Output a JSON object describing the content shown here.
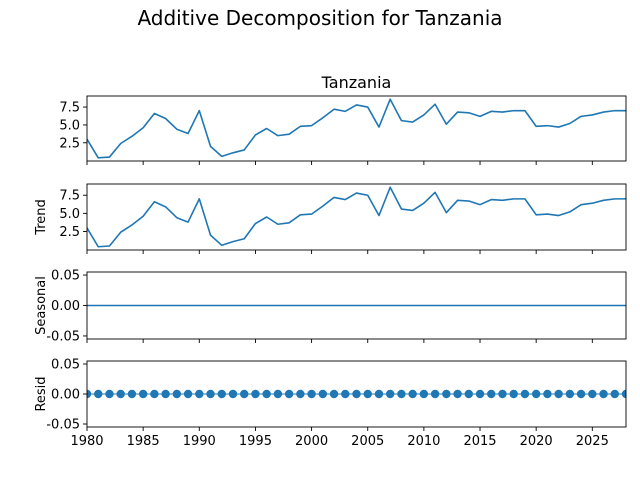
{
  "figure": {
    "suptitle": "Additive Decomposition for Tanzania"
  },
  "chart_data": [
    {
      "type": "line",
      "name": "observed",
      "title": "Tanzania",
      "ylabel": "",
      "x": [
        1980,
        1981,
        1982,
        1983,
        1984,
        1985,
        1986,
        1987,
        1988,
        1989,
        1990,
        1991,
        1992,
        1993,
        1994,
        1995,
        1996,
        1997,
        1998,
        1999,
        2000,
        2001,
        2002,
        2003,
        2004,
        2005,
        2006,
        2007,
        2008,
        2009,
        2010,
        2011,
        2012,
        2013,
        2014,
        2015,
        2016,
        2017,
        2018,
        2019,
        2020,
        2021,
        2022,
        2023,
        2024,
        2025,
        2026,
        2027,
        2028
      ],
      "values": [
        3.0,
        0.4,
        0.5,
        2.4,
        3.4,
        4.6,
        6.6,
        5.9,
        4.4,
        3.8,
        7.0,
        2.0,
        0.6,
        1.1,
        1.5,
        3.6,
        4.5,
        3.5,
        3.7,
        4.8,
        4.9,
        6.0,
        7.2,
        6.9,
        7.8,
        7.5,
        4.7,
        8.6,
        5.6,
        5.4,
        6.4,
        7.9,
        5.1,
        6.8,
        6.7,
        6.2,
        6.9,
        6.8,
        7.0,
        7.0,
        4.8,
        4.9,
        4.7,
        5.2,
        6.2,
        6.4,
        6.8,
        7.0,
        7.0
      ],
      "xlim": [
        1980,
        2028
      ],
      "ylim": [
        -0.05,
        9.05
      ],
      "yticks": [
        "2.5",
        "5.0",
        "7.5"
      ],
      "color": "#1f77b4"
    },
    {
      "type": "line",
      "name": "trend",
      "title": "",
      "ylabel": "Trend",
      "x": [
        1980,
        1981,
        1982,
        1983,
        1984,
        1985,
        1986,
        1987,
        1988,
        1989,
        1990,
        1991,
        1992,
        1993,
        1994,
        1995,
        1996,
        1997,
        1998,
        1999,
        2000,
        2001,
        2002,
        2003,
        2004,
        2005,
        2006,
        2007,
        2008,
        2009,
        2010,
        2011,
        2012,
        2013,
        2014,
        2015,
        2016,
        2017,
        2018,
        2019,
        2020,
        2021,
        2022,
        2023,
        2024,
        2025,
        2026,
        2027,
        2028
      ],
      "values": [
        3.0,
        0.4,
        0.5,
        2.4,
        3.4,
        4.6,
        6.6,
        5.9,
        4.4,
        3.8,
        7.0,
        2.0,
        0.6,
        1.1,
        1.5,
        3.6,
        4.5,
        3.5,
        3.7,
        4.8,
        4.9,
        6.0,
        7.2,
        6.9,
        7.8,
        7.5,
        4.7,
        8.6,
        5.6,
        5.4,
        6.4,
        7.9,
        5.1,
        6.8,
        6.7,
        6.2,
        6.9,
        6.8,
        7.0,
        7.0,
        4.8,
        4.9,
        4.7,
        5.2,
        6.2,
        6.4,
        6.8,
        7.0,
        7.0
      ],
      "xlim": [
        1980,
        2028
      ],
      "ylim": [
        -0.05,
        9.05
      ],
      "yticks": [
        "2.5",
        "5.0",
        "7.5"
      ],
      "color": "#1f77b4"
    },
    {
      "type": "line",
      "name": "seasonal",
      "title": "",
      "ylabel": "Seasonal",
      "x": [
        1980,
        2028
      ],
      "values": [
        0.0,
        0.0
      ],
      "xlim": [
        1980,
        2028
      ],
      "ylim": [
        -0.055,
        0.055
      ],
      "yticks": [
        "-0.05",
        "0.00",
        "0.05"
      ],
      "color": "#1f77b4"
    },
    {
      "type": "scatter",
      "name": "resid",
      "title": "",
      "ylabel": "Resid",
      "x": [
        1980,
        1981,
        1982,
        1983,
        1984,
        1985,
        1986,
        1987,
        1988,
        1989,
        1990,
        1991,
        1992,
        1993,
        1994,
        1995,
        1996,
        1997,
        1998,
        1999,
        2000,
        2001,
        2002,
        2003,
        2004,
        2005,
        2006,
        2007,
        2008,
        2009,
        2010,
        2011,
        2012,
        2013,
        2014,
        2015,
        2016,
        2017,
        2018,
        2019,
        2020,
        2021,
        2022,
        2023,
        2024,
        2025,
        2026,
        2027,
        2028
      ],
      "values": [
        0,
        0,
        0,
        0,
        0,
        0,
        0,
        0,
        0,
        0,
        0,
        0,
        0,
        0,
        0,
        0,
        0,
        0,
        0,
        0,
        0,
        0,
        0,
        0,
        0,
        0,
        0,
        0,
        0,
        0,
        0,
        0,
        0,
        0,
        0,
        0,
        0,
        0,
        0,
        0,
        0,
        0,
        0,
        0,
        0,
        0,
        0,
        0,
        0
      ],
      "xlim": [
        1980,
        2028
      ],
      "ylim": [
        -0.055,
        0.055
      ],
      "yticks": [
        "-0.05",
        "0.00",
        "0.05"
      ],
      "xticks": [
        "1980",
        "1985",
        "1990",
        "1995",
        "2000",
        "2005",
        "2010",
        "2015",
        "2020",
        "2025"
      ],
      "color": "#1f77b4"
    }
  ]
}
